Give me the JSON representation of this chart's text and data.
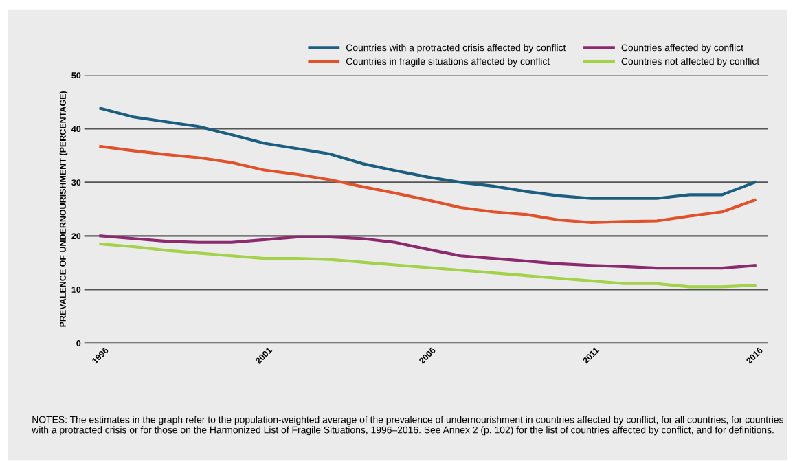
{
  "chart_data": {
    "type": "line",
    "ylabel": "PREVALENCE OF UNDERNOURISHMENT (PERCENTAGE)",
    "x": [
      1996,
      1997,
      1998,
      1999,
      2000,
      2001,
      2002,
      2003,
      2004,
      2005,
      2006,
      2007,
      2008,
      2009,
      2010,
      2011,
      2012,
      2013,
      2014,
      2015,
      2016
    ],
    "series": [
      {
        "name": "Countries with a protracted crisis affected by conflict",
        "color": "#1b5e80",
        "values": [
          43.8,
          42.2,
          41.3,
          40.4,
          38.9,
          37.3,
          36.3,
          35.3,
          33.5,
          32.2,
          31.0,
          30.0,
          29.3,
          28.3,
          27.5,
          27.0,
          27.0,
          27.0,
          27.7,
          27.7,
          30.0
        ]
      },
      {
        "name": "Countries in fragile situations affected by conflict",
        "color": "#e0522b",
        "values": [
          36.7,
          35.9,
          35.2,
          34.6,
          33.7,
          32.3,
          31.5,
          30.5,
          29.2,
          28.0,
          26.7,
          25.3,
          24.5,
          24.0,
          23.0,
          22.5,
          22.7,
          22.8,
          23.7,
          24.5,
          26.7
        ]
      },
      {
        "name": "Countries affected by conflict",
        "color": "#8b2a6e",
        "values": [
          20.0,
          19.5,
          19.0,
          18.8,
          18.8,
          19.3,
          19.8,
          19.8,
          19.5,
          18.8,
          17.5,
          16.3,
          15.8,
          15.3,
          14.8,
          14.5,
          14.3,
          14.0,
          14.0,
          14.0,
          14.5
        ]
      },
      {
        "name": "Countries not affected by conflict",
        "color": "#a3d14a",
        "values": [
          18.5,
          18.0,
          17.3,
          16.8,
          16.3,
          15.8,
          15.8,
          15.6,
          15.1,
          14.6,
          14.1,
          13.6,
          13.1,
          12.6,
          12.1,
          11.6,
          11.1,
          11.1,
          10.5,
          10.5,
          10.8
        ]
      }
    ],
    "xlim": [
      1995.5,
      2016.4
    ],
    "xticks": [
      1996,
      2001,
      2006,
      2011,
      2016
    ],
    "ylim": [
      0,
      50
    ],
    "yticks": [
      0,
      10,
      20,
      30,
      40,
      50
    ],
    "grid": "y",
    "legend": "top",
    "line_style": "solid",
    "annotations": [
      "NOTES: The estimates in the graph refer to the population-weighted average of the prevalence of undernourishment in countries affected by conflict, for all countries, for countries with a protracted crisis or for those on the Harmonized List of Fragile Situations, 1996–2016. See Annex 2 (p. 102) for the list of countries affected by conflict, and for definitions."
    ]
  }
}
